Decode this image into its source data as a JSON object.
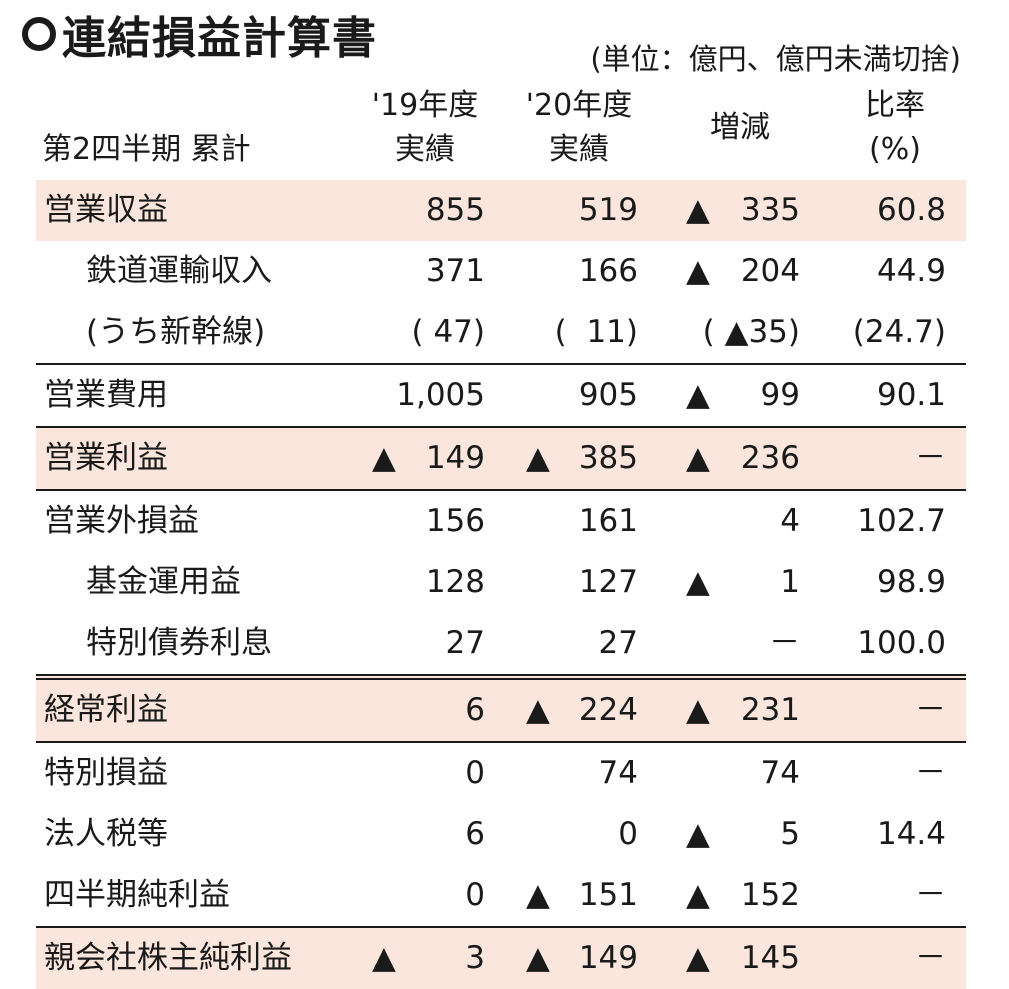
{
  "title": "連結損益計算書",
  "unit": "(単位：億円、億円未満切捨)",
  "headers": {
    "period": "第2四半期 累計",
    "col19": [
      "'19年度",
      "実績"
    ],
    "col20": [
      "'20年度",
      "実績"
    ],
    "diff": "増減",
    "ratio": [
      "比率",
      "(%)"
    ]
  },
  "colors": {
    "highlight": "#fae6dc"
  },
  "rows": [
    {
      "label": "営業収益",
      "v19": "855",
      "v20": "519",
      "diff": "335",
      "diff_neg": true,
      "ratio": "60.8",
      "hl": true
    },
    {
      "label": "鉄道運輸収入",
      "indent": true,
      "v19": "371",
      "v20": "166",
      "diff": "204",
      "diff_neg": true,
      "ratio": "44.9"
    },
    {
      "label": "(うち新幹線)",
      "indent": true,
      "v19": "( 47)",
      "v20": "(  11)",
      "diff": "( ▲35)",
      "ratio": "(24.7)"
    },
    {
      "label": "営業費用",
      "v19": "1,005",
      "v20": "905",
      "diff": "99",
      "diff_neg": true,
      "ratio": "90.1",
      "line": true
    },
    {
      "label": "営業利益",
      "v19": "149",
      "v19_neg": true,
      "v20": "385",
      "v20_neg": true,
      "diff": "236",
      "diff_neg": true,
      "ratio": "－",
      "hl": true,
      "line": true
    },
    {
      "label": "営業外損益",
      "v19": "156",
      "v20": "161",
      "diff": "4",
      "ratio": "102.7",
      "line": true
    },
    {
      "label": "基金運用益",
      "indent": true,
      "v19": "128",
      "v20": "127",
      "diff": "1",
      "diff_neg": true,
      "ratio": "98.9"
    },
    {
      "label": "特別債券利息",
      "indent": true,
      "v19": "27",
      "v20": "27",
      "diff": "－",
      "ratio": "100.0"
    },
    {
      "label": "経常利益",
      "v19": "6",
      "v20": "224",
      "v20_neg": true,
      "diff": "231",
      "diff_neg": true,
      "ratio": "－",
      "hl": true,
      "dbl": true
    },
    {
      "label": "特別損益",
      "v19": "0",
      "v20": "74",
      "diff": "74",
      "ratio": "－",
      "line": true
    },
    {
      "label": "法人税等",
      "v19": "6",
      "v20": "0",
      "diff": "5",
      "diff_neg": true,
      "ratio": "14.4"
    },
    {
      "label": "四半期純利益",
      "v19": "0",
      "v20": "151",
      "v20_neg": true,
      "diff": "152",
      "diff_neg": true,
      "ratio": "－"
    },
    {
      "label": "親会社株主純利益",
      "v19": "3",
      "v19_neg": true,
      "v20": "149",
      "v20_neg": true,
      "diff": "145",
      "diff_neg": true,
      "ratio": "－",
      "hl": true,
      "line": true
    }
  ]
}
